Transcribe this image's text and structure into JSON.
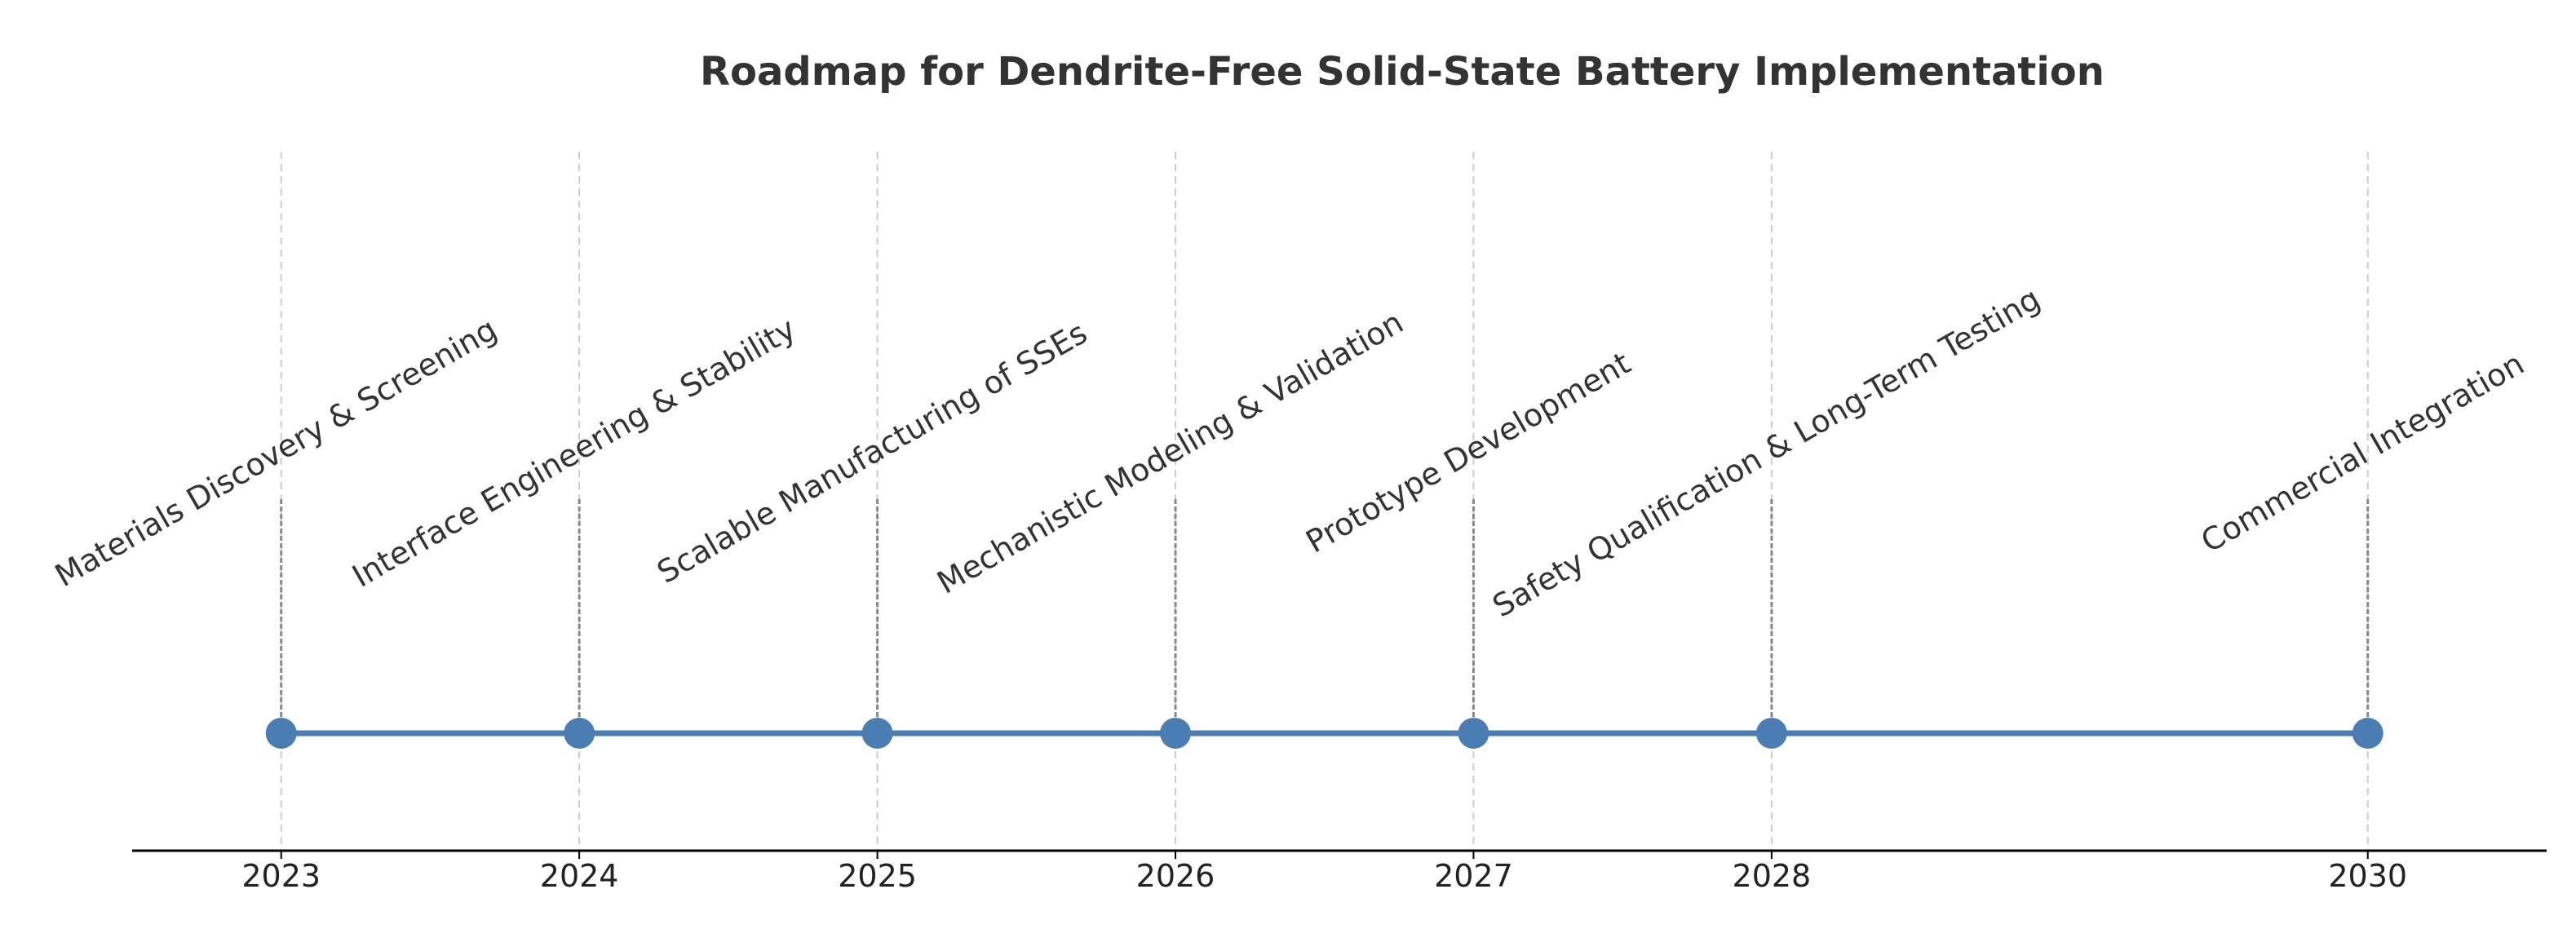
{
  "chart_data": {
    "type": "line",
    "title": "Roadmap for Dendrite-Free Solid-State Battery Implementation",
    "xlabel": "",
    "ylabel": "",
    "xlim": [
      2022.5,
      2030.6
    ],
    "grid": "vertical dashed",
    "ticks": [
      2023,
      2024,
      2025,
      2026,
      2027,
      2028,
      2030
    ],
    "tick_labels": [
      "2023",
      "2024",
      "2025",
      "2026",
      "2027",
      "2028",
      "2030"
    ],
    "series": [
      {
        "points": [
          {
            "x": 2023,
            "label": "Materials Discovery & Screening"
          },
          {
            "x": 2024,
            "label": "Interface Engineering & Stability"
          },
          {
            "x": 2025,
            "label": "Scalable Manufacturing of SSEs"
          },
          {
            "x": 2026,
            "label": "Mechanistic Modeling & Validation"
          },
          {
            "x": 2027,
            "label": "Prototype Development"
          },
          {
            "x": 2028,
            "label": "Safety Qualification & Long-Term Testing"
          },
          {
            "x": 2030,
            "label": "Commercial Integration"
          }
        ]
      }
    ],
    "colors": {
      "line": "#4a7eb3",
      "marker": "#4a7eb3",
      "stem": "#888888",
      "grid": "#cccccc",
      "axis": "#000000"
    }
  }
}
